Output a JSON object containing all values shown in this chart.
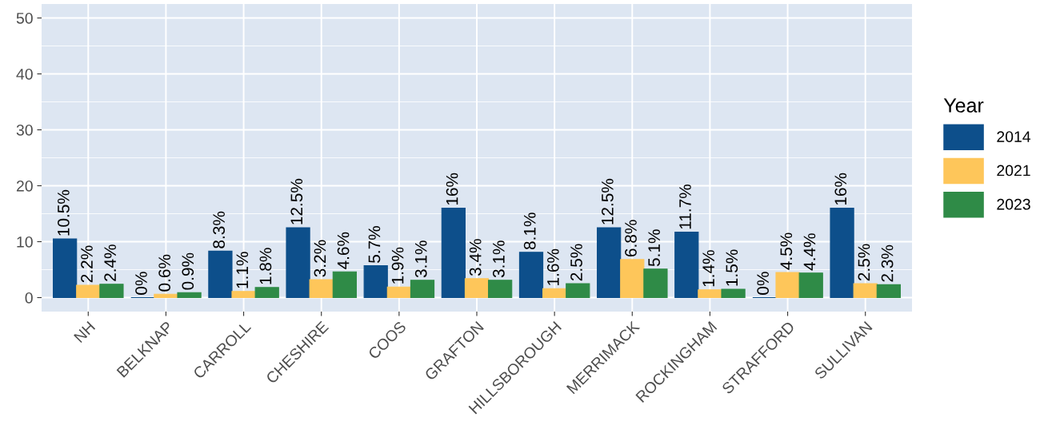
{
  "chart_data": {
    "type": "bar",
    "legend_title": "Year",
    "categories": [
      "NH",
      "BELKNAP",
      "CARROLL",
      "CHESHIRE",
      "COOS",
      "GRAFTON",
      "HILLSBOROUGH",
      "MERRIMACK",
      "ROCKINGHAM",
      "STRAFFORD",
      "SULLIVAN"
    ],
    "series": [
      {
        "name": "2014",
        "color": "#0d4f8b",
        "values": [
          10.5,
          0,
          8.3,
          12.5,
          5.7,
          16,
          8.1,
          12.5,
          11.7,
          0,
          16
        ],
        "value_labels": [
          "10.5%",
          "0%",
          "8.3%",
          "12.5%",
          "5.7%",
          "16%",
          "8.1%",
          "12.5%",
          "11.7%",
          "0%",
          "16%"
        ]
      },
      {
        "name": "2021",
        "color": "#fec65a",
        "values": [
          2.2,
          0.6,
          1.1,
          3.2,
          1.9,
          3.4,
          1.6,
          6.8,
          1.4,
          4.5,
          2.5
        ],
        "value_labels": [
          "2.2%",
          "0.6%",
          "1.1%",
          "3.2%",
          "1.9%",
          "3.4%",
          "1.6%",
          "6.8%",
          "1.4%",
          "4.5%",
          "2.5%"
        ]
      },
      {
        "name": "2023",
        "color": "#2f8b47",
        "values": [
          2.4,
          0.9,
          1.8,
          4.6,
          3.1,
          3.1,
          2.5,
          5.1,
          1.5,
          4.4,
          2.3
        ],
        "value_labels": [
          "2.4%",
          "0.9%",
          "1.8%",
          "4.6%",
          "3.1%",
          "3.1%",
          "2.5%",
          "5.1%",
          "1.5%",
          "4.4%",
          "2.3%"
        ]
      }
    ],
    "ylim": [
      -2.5,
      52.5
    ],
    "yticks": [
      0,
      10,
      20,
      30,
      40,
      50
    ],
    "grid": true,
    "legend": "right"
  }
}
